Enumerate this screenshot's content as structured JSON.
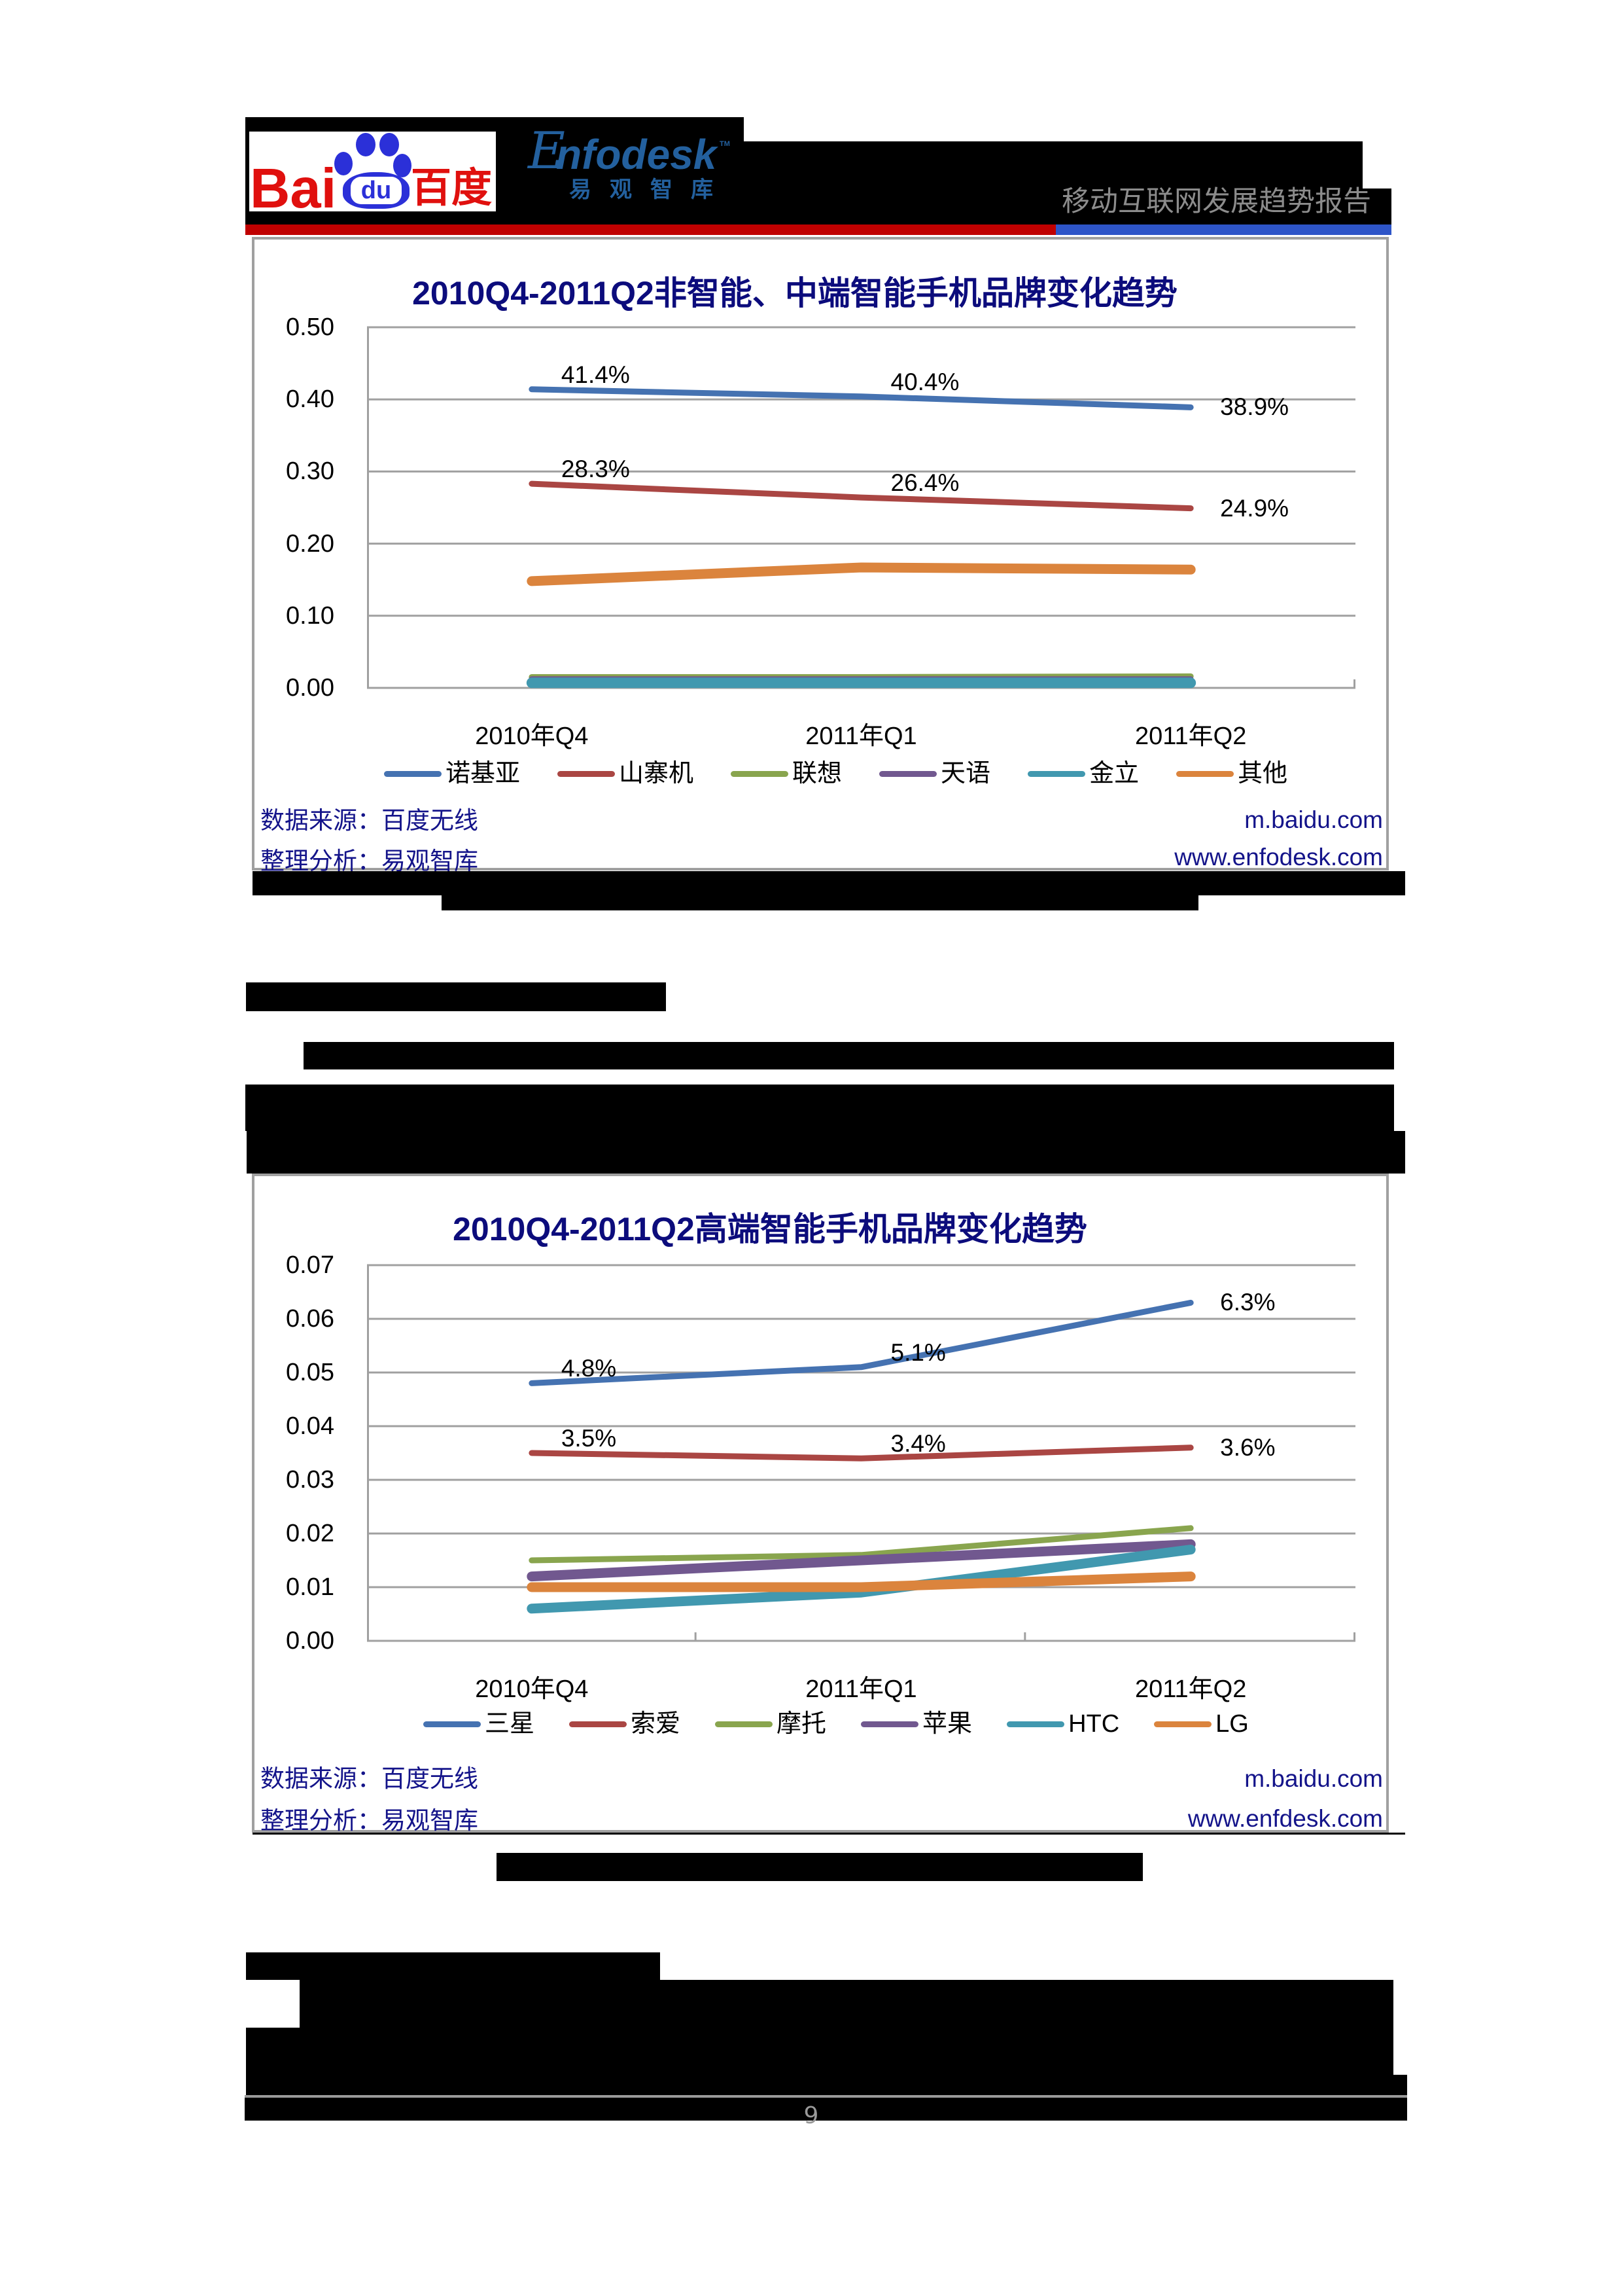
{
  "header": {
    "baidu_logo": {
      "latin": "Bai",
      "paw": "du",
      "cjk": "百度"
    },
    "enfodesk_logo": {
      "initial": "E",
      "rest": "nfodesk",
      "tm": "TM",
      "cjk": "易观智库"
    },
    "report_title": "移动互联网发展趋势报告",
    "bar_colors": {
      "red": "#c00000",
      "blue": "#2e55c8"
    }
  },
  "chart_data": [
    {
      "type": "line",
      "title": "2010Q4-2011Q2非智能、中端智能手机品牌变化趋势",
      "categories": [
        "2010年Q4",
        "2011年Q1",
        "2011年Q2"
      ],
      "xlabel": "",
      "ylabel": "",
      "ylim": [
        0,
        0.5
      ],
      "yticks": [
        "0.00",
        "0.10",
        "0.20",
        "0.30",
        "0.40",
        "0.50"
      ],
      "grid": true,
      "legend_position": "bottom",
      "series": [
        {
          "name": "诺基亚",
          "color": "#4572b1",
          "line_width": 9,
          "values": [
            0.414,
            0.404,
            0.389
          ],
          "labels": [
            "41.4%",
            "40.4%",
            "38.9%"
          ]
        },
        {
          "name": "山寨机",
          "color": "#aa4643",
          "line_width": 9,
          "values": [
            0.283,
            0.264,
            0.249
          ],
          "labels": [
            "28.3%",
            "26.4%",
            "24.9%"
          ]
        },
        {
          "name": "联想",
          "color": "#89a54e",
          "line_width": 9,
          "values": [
            0.015,
            0.015,
            0.016
          ]
        },
        {
          "name": "天语",
          "color": "#71588f",
          "line_width": 9,
          "values": [
            0.012,
            0.012,
            0.012
          ]
        },
        {
          "name": "金立",
          "color": "#4198af",
          "line_width": 16,
          "values": [
            0.007,
            0.007,
            0.007
          ]
        },
        {
          "name": "其他",
          "color": "#db843d",
          "line_width": 15,
          "values": [
            0.148,
            0.167,
            0.164
          ]
        }
      ],
      "notes": {
        "source": "数据来源：百度无线",
        "analysis": "整理分析：易观智库",
        "url_1": "m.baidu.com",
        "url_2": "www.enfodesk.com"
      }
    },
    {
      "type": "line",
      "title": "2010Q4-2011Q2高端智能手机品牌变化趋势",
      "categories": [
        "2010年Q4",
        "2011年Q1",
        "2011年Q2"
      ],
      "xlabel": "",
      "ylabel": "",
      "ylim": [
        0,
        0.07
      ],
      "yticks": [
        "0.00",
        "0.01",
        "0.02",
        "0.03",
        "0.04",
        "0.05",
        "0.06",
        "0.07"
      ],
      "grid": true,
      "legend_position": "bottom",
      "series": [
        {
          "name": "三星",
          "color": "#4572b1",
          "line_width": 9,
          "values": [
            0.048,
            0.051,
            0.063
          ],
          "labels": [
            "4.8%",
            "5.1%",
            "6.3%"
          ]
        },
        {
          "name": "索爱",
          "color": "#aa4643",
          "line_width": 9,
          "values": [
            0.035,
            0.034,
            0.036
          ],
          "labels": [
            "3.5%",
            "3.4%",
            "3.6%"
          ]
        },
        {
          "name": "摩托",
          "color": "#89a54e",
          "line_width": 9,
          "values": [
            0.015,
            0.016,
            0.021
          ]
        },
        {
          "name": "苹果",
          "color": "#71588f",
          "line_width": 15,
          "values": [
            0.012,
            0.015,
            0.018
          ]
        },
        {
          "name": "HTC",
          "color": "#4198af",
          "line_width": 15,
          "values": [
            0.006,
            0.009,
            0.017
          ]
        },
        {
          "name": "LG",
          "color": "#db843d",
          "line_width": 15,
          "values": [
            0.01,
            0.01,
            0.012
          ]
        }
      ],
      "notes": {
        "source": "数据来源：百度无线",
        "analysis": "整理分析：易观智库",
        "url_1": "m.baidu.com",
        "url_2": "www.enfdesk.com"
      }
    }
  ],
  "footer": {
    "page_number": "9"
  }
}
